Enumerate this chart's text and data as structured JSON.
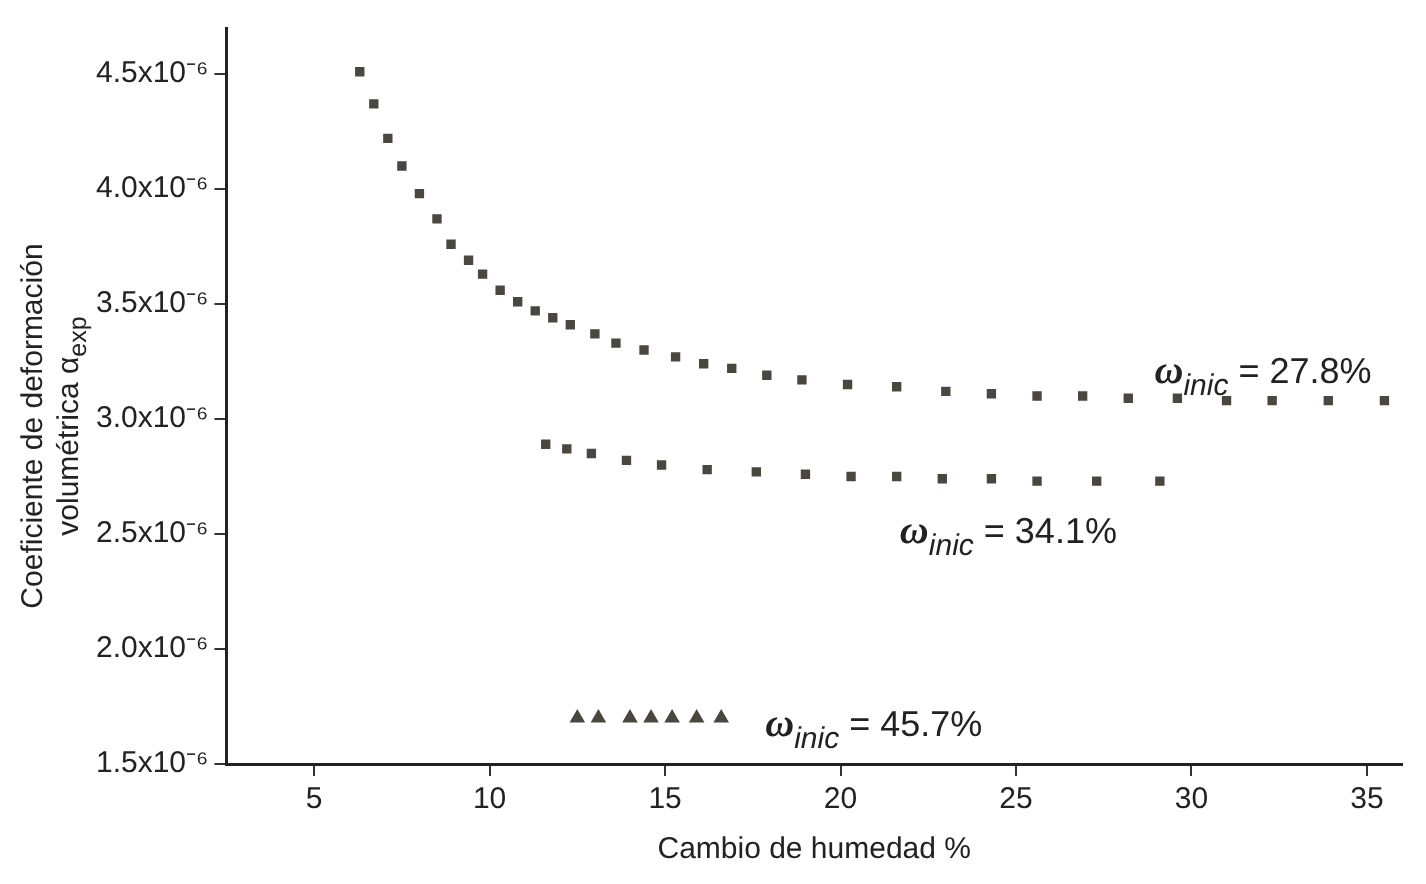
{
  "chart_data": {
    "type": "scatter",
    "xlabel": "Cambio de humedad %",
    "ylabel": "Coeficiente de deformación volumétrica α$_{exp}$",
    "xlim": [
      2.5,
      36
    ],
    "xticks": [
      5,
      10,
      15,
      20,
      25,
      30,
      35
    ],
    "ylim": [
      1.5e-06,
      4.7e-06
    ],
    "yticks": [
      {
        "value": 1.5e-06,
        "label": "1.5x10⁻⁶"
      },
      {
        "value": 2e-06,
        "label": "2.0x10⁻⁶"
      },
      {
        "value": 2.5e-06,
        "label": "2.5x10⁻⁶"
      },
      {
        "value": 3e-06,
        "label": "3.0x10⁻⁶"
      },
      {
        "value": 3.5e-06,
        "label": "3.5x10⁻⁶"
      },
      {
        "value": 4e-06,
        "label": "4.0x10⁻⁶"
      },
      {
        "value": 4.5e-06,
        "label": "4.5x10⁻⁶"
      }
    ],
    "grid": false,
    "legend": false,
    "series": [
      {
        "name": "ω$_{inic}$ = 27.8%",
        "color": "#4a4640",
        "marker": "square",
        "x": [
          6.3,
          6.7,
          7.1,
          7.5,
          8.0,
          8.5,
          8.9,
          9.4,
          9.8,
          10.3,
          10.8,
          11.3,
          11.8,
          12.3,
          13.0,
          13.6,
          14.4,
          15.3,
          16.1,
          16.9,
          17.9,
          18.9,
          20.2,
          21.6,
          23.0,
          24.3,
          25.6,
          26.9,
          28.2,
          29.6,
          31.0,
          32.3,
          33.9,
          35.5
        ],
        "values": [
          4.51e-06,
          4.37e-06,
          4.22e-06,
          4.1e-06,
          3.98e-06,
          3.87e-06,
          3.76e-06,
          3.69e-06,
          3.63e-06,
          3.56e-06,
          3.51e-06,
          3.47e-06,
          3.44e-06,
          3.41e-06,
          3.37e-06,
          3.33e-06,
          3.3e-06,
          3.27e-06,
          3.24e-06,
          3.22e-06,
          3.19e-06,
          3.17e-06,
          3.15e-06,
          3.14e-06,
          3.12e-06,
          3.11e-06,
          3.1e-06,
          3.1e-06,
          3.09e-06,
          3.09e-06,
          3.08e-06,
          3.08e-06,
          3.08e-06,
          3.08e-06
        ]
      },
      {
        "name": "ω$_{inic}$ = 34.1%",
        "color": "#4a4640",
        "marker": "square",
        "x": [
          11.6,
          12.2,
          12.9,
          13.9,
          14.9,
          16.2,
          17.6,
          19.0,
          20.3,
          21.6,
          22.9,
          24.3,
          25.6,
          27.3,
          29.1
        ],
        "values": [
          2.89e-06,
          2.87e-06,
          2.85e-06,
          2.82e-06,
          2.8e-06,
          2.78e-06,
          2.77e-06,
          2.76e-06,
          2.75e-06,
          2.75e-06,
          2.74e-06,
          2.74e-06,
          2.73e-06,
          2.73e-06,
          2.73e-06
        ]
      },
      {
        "name": "ω$_{inic}$ = 45.7%",
        "color": "#4a4640",
        "marker": "triangle",
        "x": [
          12.5,
          13.1,
          14.0,
          14.6,
          15.2,
          15.9,
          16.6
        ],
        "values": [
          1.7e-06,
          1.7e-06,
          1.7e-06,
          1.7e-06,
          1.7e-06,
          1.7e-06,
          1.7e-06
        ]
      }
    ]
  }
}
